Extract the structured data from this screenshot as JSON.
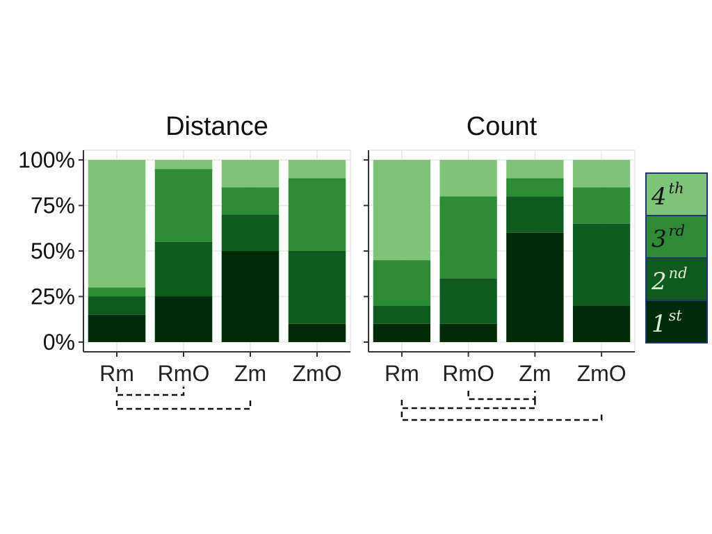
{
  "chart_data": [
    {
      "type": "bar",
      "stacked": true,
      "title": "Distance",
      "categories": [
        "Rm",
        "RmO",
        "Zm",
        "ZmO"
      ],
      "ylim": [
        0,
        100
      ],
      "yticks": [
        "0%",
        "25%",
        "50%",
        "75%",
        "100%"
      ],
      "series": [
        {
          "name": "1st",
          "values": [
            15,
            25,
            50,
            10
          ]
        },
        {
          "name": "2nd",
          "values": [
            10,
            30,
            20,
            40
          ]
        },
        {
          "name": "3rd",
          "values": [
            5,
            40,
            15,
            40
          ]
        },
        {
          "name": "4th",
          "values": [
            70,
            5,
            15,
            10
          ]
        }
      ],
      "significance_brackets": [
        [
          "Rm",
          "RmO"
        ],
        [
          "Rm",
          "Zm"
        ]
      ]
    },
    {
      "type": "bar",
      "stacked": true,
      "title": "Count",
      "categories": [
        "Rm",
        "RmO",
        "Zm",
        "ZmO"
      ],
      "ylim": [
        0,
        100
      ],
      "yticks": [
        "0%",
        "25%",
        "50%",
        "75%",
        "100%"
      ],
      "series": [
        {
          "name": "1st",
          "values": [
            10,
            10,
            60,
            20
          ]
        },
        {
          "name": "2nd",
          "values": [
            10,
            25,
            20,
            45
          ]
        },
        {
          "name": "3rd",
          "values": [
            25,
            45,
            10,
            20
          ]
        },
        {
          "name": "4th",
          "values": [
            55,
            20,
            10,
            15
          ]
        }
      ],
      "significance_brackets": [
        [
          "RmO",
          "Zm"
        ],
        [
          "Rm",
          "Zm"
        ],
        [
          "Rm",
          "ZmO"
        ]
      ]
    }
  ],
  "legend": {
    "placement": "right",
    "items": [
      {
        "base": "4",
        "sup": "th",
        "color": "#7dc47a",
        "text_color": "#111111"
      },
      {
        "base": "3",
        "sup": "rd",
        "color": "#2e8b35",
        "text_color": "#111111"
      },
      {
        "base": "2",
        "sup": "nd",
        "color": "#0f5a1f",
        "text_color": "#d8eed6"
      },
      {
        "base": "1",
        "sup": "st",
        "color": "#002a08",
        "text_color": "#d8eed6"
      }
    ],
    "border_color": "#1f3864"
  },
  "colors": {
    "1st": "#002a08",
    "2nd": "#0f5a1f",
    "3rd": "#2e8b35",
    "4th": "#7dc47a",
    "panel_background": "#ffffff",
    "grid": "#e6e6e6",
    "axis": "#333333"
  },
  "grid": true
}
